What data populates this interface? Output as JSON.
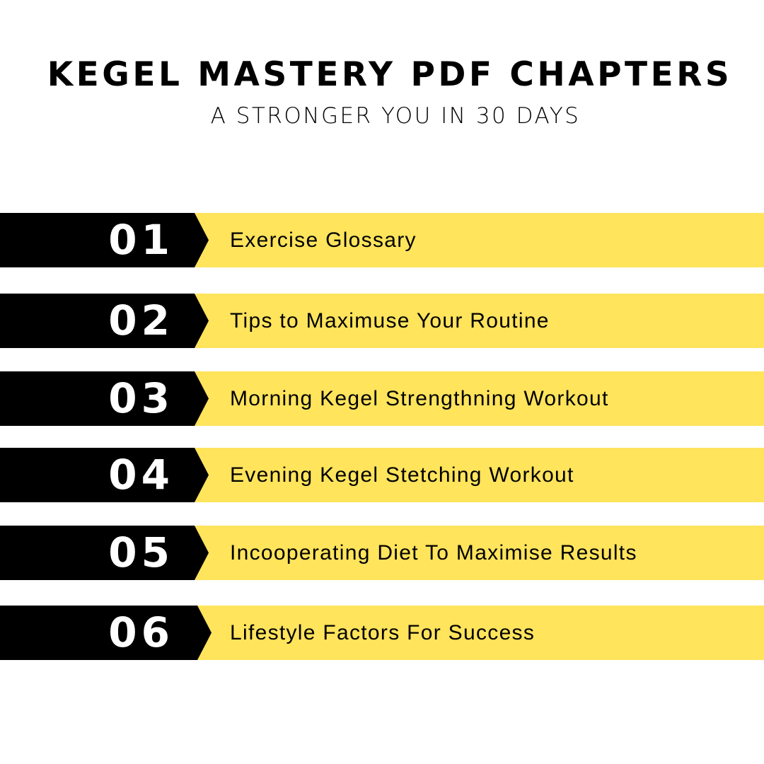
{
  "header": {
    "title": "KEGEL MASTERY PDF CHAPTERS",
    "subtitle": "A STRONGER YOU IN 30 DAYS"
  },
  "colors": {
    "banner": "#FFE45C",
    "number_block": "#000000",
    "number_text": "#FFFFFF"
  },
  "chapters": [
    {
      "number": "01",
      "title": "Exercise Glossary"
    },
    {
      "number": "02",
      "title": "Tips to Maximuse Your Routine"
    },
    {
      "number": "03",
      "title": "Morning Kegel Strengthning Workout"
    },
    {
      "number": "04",
      "title": "Evening Kegel Stetching Workout"
    },
    {
      "number": "05",
      "title": "Incooperating Diet To Maximise Results"
    },
    {
      "number": "06",
      "title": "Lifestyle Factors For Success"
    }
  ]
}
